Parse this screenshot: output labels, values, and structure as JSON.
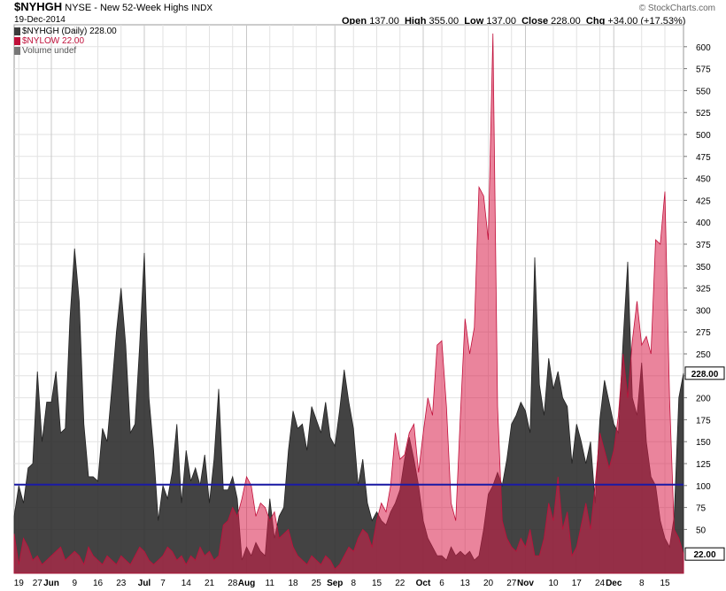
{
  "header": {
    "symbol": "$NYHGH",
    "description": "NYSE - New 52-Week Highs",
    "exchange": "INDX",
    "date": "19-Dec-2014",
    "credit": "© StockCharts.com",
    "ohlc": [
      {
        "label": "Open",
        "value": "137.00"
      },
      {
        "label": "High",
        "value": "355.00"
      },
      {
        "label": "Low",
        "value": "137.00"
      },
      {
        "label": "Close",
        "value": "228.00"
      },
      {
        "label": "Chg",
        "value": "+34.00 (+17.53%)"
      }
    ]
  },
  "legend": [
    {
      "text": "$NYHGH (Daily) 228.00",
      "color": "#3c3c3c"
    },
    {
      "text": "$NYLOW 22.00",
      "color": "#c0103a"
    },
    {
      "text": "Volume undef",
      "color": "#777777"
    }
  ],
  "chart_data": {
    "type": "area",
    "ylim": [
      0,
      625
    ],
    "y_ticks": [
      50,
      75,
      100,
      125,
      150,
      175,
      200,
      225,
      250,
      275,
      300,
      325,
      350,
      375,
      400,
      425,
      450,
      475,
      500,
      525,
      550,
      575,
      600
    ],
    "y_tick_labels": [
      "50",
      "75",
      "100",
      "125",
      "150",
      "175",
      "200",
      "225",
      "250",
      "275",
      "300",
      "325",
      "350",
      "375",
      "400",
      "425",
      "450",
      "475",
      "500",
      "525",
      "550",
      "575",
      "600"
    ],
    "x_labels": [
      {
        "i": 1,
        "label": "19",
        "bold": false
      },
      {
        "i": 5,
        "label": "27",
        "bold": false
      },
      {
        "i": 8,
        "label": "Jun",
        "bold": true
      },
      {
        "i": 13,
        "label": "9",
        "bold": false
      },
      {
        "i": 18,
        "label": "16",
        "bold": false
      },
      {
        "i": 23,
        "label": "23",
        "bold": false
      },
      {
        "i": 28,
        "label": "Jul",
        "bold": true
      },
      {
        "i": 32,
        "label": "7",
        "bold": false
      },
      {
        "i": 37,
        "label": "14",
        "bold": false
      },
      {
        "i": 42,
        "label": "21",
        "bold": false
      },
      {
        "i": 47,
        "label": "28",
        "bold": false
      },
      {
        "i": 50,
        "label": "Aug",
        "bold": true
      },
      {
        "i": 55,
        "label": "11",
        "bold": false
      },
      {
        "i": 60,
        "label": "18",
        "bold": false
      },
      {
        "i": 65,
        "label": "25",
        "bold": false
      },
      {
        "i": 69,
        "label": "Sep",
        "bold": true
      },
      {
        "i": 73,
        "label": "8",
        "bold": false
      },
      {
        "i": 78,
        "label": "15",
        "bold": false
      },
      {
        "i": 83,
        "label": "22",
        "bold": false
      },
      {
        "i": 88,
        "label": "Oct",
        "bold": true
      },
      {
        "i": 92,
        "label": "6",
        "bold": false
      },
      {
        "i": 97,
        "label": "13",
        "bold": false
      },
      {
        "i": 102,
        "label": "20",
        "bold": false
      },
      {
        "i": 107,
        "label": "27",
        "bold": false
      },
      {
        "i": 110,
        "label": "Nov",
        "bold": true
      },
      {
        "i": 116,
        "label": "10",
        "bold": false
      },
      {
        "i": 121,
        "label": "17",
        "bold": false
      },
      {
        "i": 126,
        "label": "24",
        "bold": false
      },
      {
        "i": 129,
        "label": "Dec",
        "bold": true
      },
      {
        "i": 135,
        "label": "8",
        "bold": false
      },
      {
        "i": 140,
        "label": "15",
        "bold": false
      }
    ],
    "reference_line": {
      "value": 101,
      "color": "#1a1aa6"
    },
    "last_value_labels": [
      {
        "value": 228,
        "text": "228.00"
      },
      {
        "value": 22,
        "text": "22.00"
      }
    ],
    "series": [
      {
        "name": "$NYHGH (Daily)",
        "color": "#3c3c3c",
        "values": [
          65,
          100,
          80,
          120,
          125,
          230,
          150,
          195,
          195,
          230,
          160,
          165,
          290,
          370,
          310,
          170,
          110,
          110,
          105,
          165,
          150,
          210,
          275,
          325,
          260,
          160,
          170,
          260,
          365,
          200,
          140,
          60,
          100,
          85,
          115,
          170,
          80,
          140,
          105,
          120,
          100,
          135,
          80,
          130,
          210,
          95,
          95,
          110,
          85,
          15,
          30,
          20,
          35,
          25,
          20,
          85,
          40,
          65,
          75,
          140,
          185,
          165,
          170,
          140,
          190,
          175,
          160,
          195,
          155,
          145,
          185,
          232,
          195,
          165,
          100,
          130,
          80,
          60,
          70,
          60,
          55,
          70,
          80,
          95,
          130,
          155,
          130,
          100,
          60,
          40,
          30,
          20,
          20,
          15,
          30,
          20,
          25,
          20,
          25,
          15,
          20,
          50,
          90,
          100,
          115,
          100,
          130,
          170,
          180,
          195,
          185,
          160,
          360,
          215,
          180,
          245,
          210,
          230,
          200,
          190,
          125,
          170,
          150,
          125,
          150,
          80,
          175,
          220,
          195,
          170,
          160,
          265,
          355,
          200,
          180,
          240,
          150,
          110,
          100,
          60,
          40,
          30,
          65,
          200,
          228
        ]
      },
      {
        "name": "$NYLOW",
        "color": "#c0103a",
        "values": [
          45,
          10,
          40,
          30,
          15,
          20,
          10,
          15,
          20,
          25,
          30,
          15,
          20,
          25,
          20,
          10,
          30,
          20,
          15,
          10,
          20,
          15,
          10,
          20,
          15,
          10,
          20,
          30,
          25,
          15,
          10,
          15,
          20,
          30,
          25,
          15,
          20,
          10,
          20,
          15,
          30,
          20,
          25,
          15,
          20,
          55,
          60,
          75,
          65,
          85,
          110,
          100,
          65,
          80,
          75,
          60,
          70,
          40,
          45,
          50,
          30,
          20,
          15,
          10,
          20,
          15,
          10,
          20,
          15,
          5,
          10,
          20,
          30,
          25,
          40,
          50,
          45,
          30,
          60,
          80,
          70,
          100,
          160,
          130,
          135,
          160,
          170,
          115,
          160,
          200,
          180,
          260,
          265,
          190,
          80,
          60,
          180,
          290,
          250,
          280,
          440,
          430,
          380,
          615,
          190,
          60,
          40,
          30,
          25,
          40,
          30,
          50,
          20,
          20,
          40,
          80,
          60,
          110,
          50,
          70,
          20,
          30,
          55,
          80,
          50,
          100,
          160,
          140,
          120,
          140,
          180,
          250,
          200,
          265,
          310,
          260,
          270,
          250,
          380,
          375,
          435,
          200,
          50,
          40,
          22
        ]
      }
    ]
  }
}
